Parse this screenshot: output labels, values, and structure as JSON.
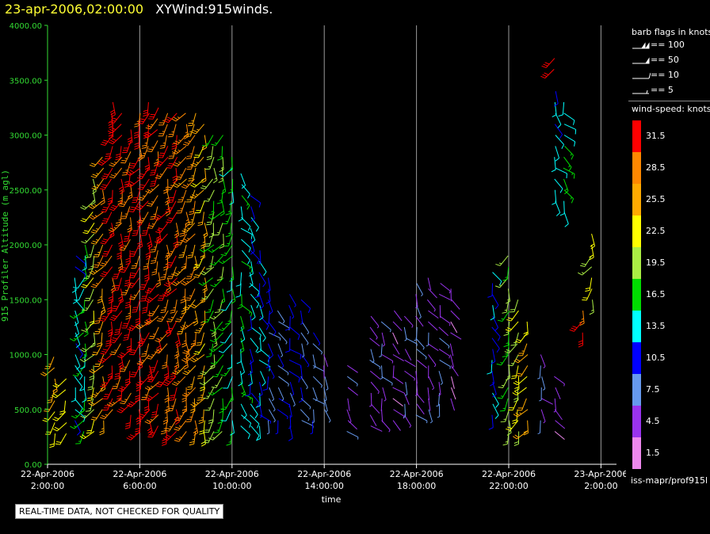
{
  "header": {
    "date_time": "23-apr-2006,02:00:00",
    "product": "XYWind:915winds."
  },
  "chart_data": {
    "type": "scatter",
    "title": "23-apr-2006,02:00:00  XYWind:915winds.",
    "xlabel": "time",
    "ylabel": "915 Profiler Altitude (m agl)",
    "xlim_hours": [
      0,
      24
    ],
    "ylim": [
      0,
      4000
    ],
    "y_ticks": [
      "0.00",
      "500.00",
      "1000.00",
      "1500.00",
      "2000.00",
      "2500.00",
      "3000.00",
      "3500.00",
      "4000.00"
    ],
    "x_ticks": [
      {
        "hour": 0,
        "line1": "22-Apr-2006",
        "line2": "2:00:00"
      },
      {
        "hour": 4,
        "line1": "22-Apr-2006",
        "line2": "6:00:00"
      },
      {
        "hour": 8,
        "line1": "22-Apr-2006",
        "line2": "10:00:00"
      },
      {
        "hour": 12,
        "line1": "22-Apr-2006",
        "line2": "14:00:00"
      },
      {
        "hour": 16,
        "line1": "22-Apr-2006",
        "line2": "18:00:00"
      },
      {
        "hour": 20,
        "line1": "22-Apr-2006",
        "line2": "22:00:00"
      },
      {
        "hour": 24,
        "line1": "23-Apr-2006",
        "line2": "2:00:00"
      }
    ],
    "grid": "vertical",
    "series_note_columns": [
      {
        "hour": 0.3,
        "ranges": [
          [
            280,
            1000,
            24
          ]
        ]
      },
      {
        "hour": 0.8,
        "ranges": [
          [
            280,
            800,
            22
          ]
        ]
      },
      {
        "hour": 1.2,
        "ranges": [
          [
            400,
            1900,
            13
          ]
        ]
      },
      {
        "hour": 1.6,
        "ranges": [
          [
            300,
            2000,
            16
          ]
        ]
      },
      {
        "hour": 2.0,
        "ranges": [
          [
            300,
            2600,
            20
          ]
        ]
      },
      {
        "hour": 2.4,
        "ranges": [
          [
            400,
            2800,
            26
          ]
        ]
      },
      {
        "hour": 2.8,
        "ranges": [
          [
            500,
            3300,
            31
          ]
        ]
      },
      {
        "hour": 3.2,
        "ranges": [
          [
            600,
            3250,
            31
          ]
        ]
      },
      {
        "hour": 3.6,
        "ranges": [
          [
            450,
            3100,
            30
          ]
        ]
      },
      {
        "hour": 4.0,
        "ranges": [
          [
            300,
            3200,
            31
          ]
        ]
      },
      {
        "hour": 4.4,
        "ranges": [
          [
            400,
            3300,
            31
          ]
        ]
      },
      {
        "hour": 4.8,
        "ranges": [
          [
            350,
            3250,
            30
          ]
        ]
      },
      {
        "hour": 5.2,
        "ranges": [
          [
            300,
            3200,
            29
          ]
        ]
      },
      {
        "hour": 5.6,
        "ranges": [
          [
            300,
            3200,
            30
          ]
        ]
      },
      {
        "hour": 6.0,
        "ranges": [
          [
            300,
            3200,
            28
          ]
        ]
      },
      {
        "hour": 6.4,
        "ranges": [
          [
            300,
            3250,
            27
          ]
        ]
      },
      {
        "hour": 6.8,
        "ranges": [
          [
            300,
            3150,
            24
          ]
        ]
      },
      {
        "hour": 7.2,
        "ranges": [
          [
            300,
            3000,
            19
          ]
        ]
      },
      {
        "hour": 7.6,
        "ranges": [
          [
            300,
            3050,
            17
          ]
        ]
      },
      {
        "hour": 8.0,
        "ranges": [
          [
            300,
            2850,
            16
          ]
        ]
      },
      {
        "hour": 8.4,
        "ranges": [
          [
            350,
            2700,
            14
          ]
        ]
      },
      {
        "hour": 8.8,
        "ranges": [
          [
            350,
            2500,
            12
          ]
        ]
      },
      {
        "hour": 9.2,
        "ranges": [
          [
            350,
            2000,
            11
          ]
        ]
      },
      {
        "hour": 9.6,
        "ranges": [
          [
            400,
            1700,
            9
          ]
        ]
      },
      {
        "hour": 10.0,
        "ranges": [
          [
            400,
            1400,
            8
          ]
        ]
      },
      {
        "hour": 10.5,
        "ranges": [
          [
            350,
            1600,
            10
          ]
        ]
      },
      {
        "hour": 11.0,
        "ranges": [
          [
            400,
            1500,
            9
          ]
        ]
      },
      {
        "hour": 11.5,
        "ranges": [
          [
            400,
            1200,
            8
          ]
        ]
      },
      {
        "hour": 12.0,
        "ranges": [
          [
            500,
            1000,
            6
          ]
        ]
      },
      {
        "hour": 13.0,
        "ranges": [
          [
            300,
            900,
            5
          ]
        ]
      },
      {
        "hour": 14.0,
        "ranges": [
          [
            350,
            1400,
            5
          ]
        ]
      },
      {
        "hour": 14.5,
        "ranges": [
          [
            400,
            1300,
            5
          ]
        ]
      },
      {
        "hour": 15.0,
        "ranges": [
          [
            400,
            1400,
            4
          ]
        ]
      },
      {
        "hour": 15.5,
        "ranges": [
          [
            450,
            1400,
            5
          ]
        ]
      },
      {
        "hour": 16.0,
        "ranges": [
          [
            450,
            1700,
            6
          ]
        ]
      },
      {
        "hour": 16.5,
        "ranges": [
          [
            500,
            1700,
            5
          ]
        ]
      },
      {
        "hour": 17.0,
        "ranges": [
          [
            550,
            1700,
            5
          ]
        ]
      },
      {
        "hour": 17.5,
        "ranges": [
          [
            600,
            1600,
            4
          ]
        ]
      },
      {
        "hour": 19.3,
        "ranges": [
          [
            450,
            1800,
            12
          ]
        ]
      },
      {
        "hour": 20.0,
        "ranges": [
          [
            300,
            1900,
            18
          ]
        ]
      },
      {
        "hour": 20.4,
        "ranges": [
          [
            300,
            1500,
            21
          ]
        ]
      },
      {
        "hour": 20.8,
        "ranges": [
          [
            300,
            1300,
            24
          ]
        ]
      },
      {
        "hour": 21.4,
        "ranges": [
          [
            400,
            1000,
            6
          ]
        ]
      },
      {
        "hour": 22.0,
        "ranges": [
          [
            300,
            800,
            4
          ],
          [
            2400,
            3400,
            13
          ],
          [
            3600,
            3700,
            31
          ]
        ]
      },
      {
        "hour": 22.4,
        "ranges": [
          [
            2300,
            3300,
            15
          ]
        ]
      },
      {
        "hour": 23.2,
        "ranges": [
          [
            1200,
            1400,
            30
          ]
        ]
      },
      {
        "hour": 23.6,
        "ranges": [
          [
            1500,
            2100,
            21
          ]
        ]
      }
    ]
  },
  "legend": {
    "barb_title": "barb flags in knots",
    "barbs": [
      {
        "label": "== 100",
        "kind": "flag2"
      },
      {
        "label": "== 50",
        "kind": "flag"
      },
      {
        "label": "== 10",
        "kind": "full"
      },
      {
        "label": "== 5",
        "kind": "half"
      }
    ],
    "speed_title": "wind-speed: knots",
    "scale": [
      {
        "label": "31.5",
        "color": "#ff0000"
      },
      {
        "label": "28.5",
        "color": "#ff8800"
      },
      {
        "label": "25.5",
        "color": "#ffaa00"
      },
      {
        "label": "22.5",
        "color": "#ffff00"
      },
      {
        "label": "19.5",
        "color": "#aaee44"
      },
      {
        "label": "16.5",
        "color": "#00dd00"
      },
      {
        "label": "13.5",
        "color": "#00ffff"
      },
      {
        "label": "10.5",
        "color": "#0000ff"
      },
      {
        "label": "7.5",
        "color": "#6699ee"
      },
      {
        "label": "4.5",
        "color": "#9933ee"
      },
      {
        "label": "1.5",
        "color": "#ee88ee"
      }
    ],
    "source_id": "iss-mapr/prof915l"
  },
  "footer": {
    "notice": "REAL-TIME DATA, NOT CHECKED FOR QUALITY"
  }
}
